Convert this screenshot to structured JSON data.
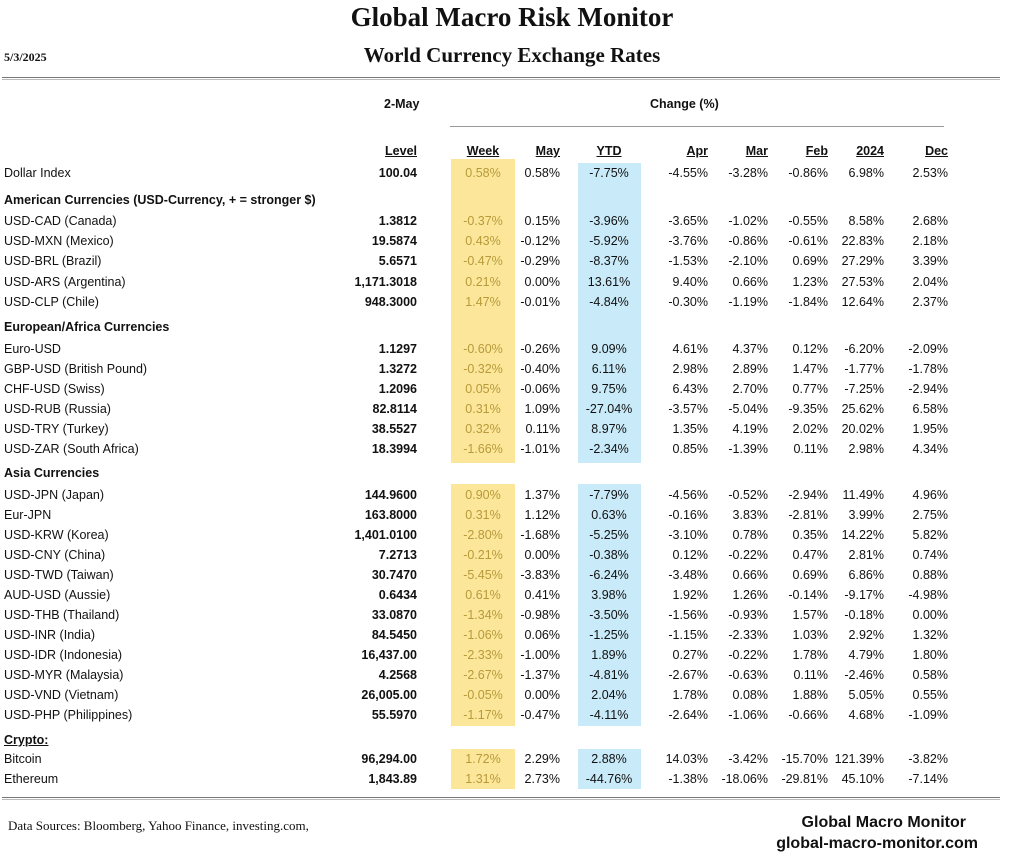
{
  "header": {
    "title": "Global Macro Risk Monitor",
    "subtitle": "World Currency Exchange Rates",
    "date": "5/3/2025",
    "as_of": "2-May",
    "change_label": "Change (%)"
  },
  "columns": [
    "Level",
    "Week",
    "May",
    "YTD",
    "Apr",
    "Mar",
    "Feb",
    "2024",
    "Dec"
  ],
  "highlight_colors": {
    "week": "#fbe69a",
    "ytd": "#c9eaf8"
  },
  "rows": [
    {
      "type": "row",
      "label": "Dollar Index",
      "values": [
        "100.04",
        "0.58%",
        "0.58%",
        "-7.75%",
        "-4.55%",
        "-3.28%",
        "-0.86%",
        "6.98%",
        "2.53%"
      ]
    },
    {
      "type": "section",
      "label": "American Currencies (USD-Currency, + = stronger $)"
    },
    {
      "type": "row",
      "label": "USD-CAD (Canada)",
      "values": [
        "1.3812",
        "-0.37%",
        "0.15%",
        "-3.96%",
        "-3.65%",
        "-1.02%",
        "-0.55%",
        "8.58%",
        "2.68%"
      ]
    },
    {
      "type": "row",
      "label": "USD-MXN  (Mexico)",
      "values": [
        "19.5874",
        "0.43%",
        "-0.12%",
        "-5.92%",
        "-3.76%",
        "-0.86%",
        "-0.61%",
        "22.83%",
        "2.18%"
      ]
    },
    {
      "type": "row",
      "label": "USD-BRL (Brazil)",
      "values": [
        "5.6571",
        "-0.47%",
        "-0.29%",
        "-8.37%",
        "-1.53%",
        "-2.10%",
        "0.69%",
        "27.29%",
        "3.39%"
      ]
    },
    {
      "type": "row",
      "label": "USD-ARS (Argentina)",
      "values": [
        "1,171.3018",
        "0.21%",
        "0.00%",
        "13.61%",
        "9.40%",
        "0.66%",
        "1.23%",
        "27.53%",
        "2.04%"
      ]
    },
    {
      "type": "row",
      "label": "USD-CLP (Chile)",
      "values": [
        "948.3000",
        "1.47%",
        "-0.01%",
        "-4.84%",
        "-0.30%",
        "-1.19%",
        "-1.84%",
        "12.64%",
        "2.37%"
      ]
    },
    {
      "type": "section",
      "label": "European/Africa Currencies"
    },
    {
      "type": "row",
      "label": "Euro-USD",
      "values": [
        "1.1297",
        "-0.60%",
        "-0.26%",
        "9.09%",
        "4.61%",
        "4.37%",
        "0.12%",
        "-6.20%",
        "-2.09%"
      ]
    },
    {
      "type": "row",
      "label": "GBP-USD (British Pound)",
      "values": [
        "1.3272",
        "-0.32%",
        "-0.40%",
        "6.11%",
        "2.98%",
        "2.89%",
        "1.47%",
        "-1.77%",
        "-1.78%"
      ]
    },
    {
      "type": "row",
      "label": "CHF-USD (Swiss)",
      "values": [
        "1.2096",
        "0.05%",
        "-0.06%",
        "9.75%",
        "6.43%",
        "2.70%",
        "0.77%",
        "-7.25%",
        "-2.94%"
      ]
    },
    {
      "type": "row",
      "label": "USD-RUB (Russia)",
      "values": [
        "82.8114",
        "0.31%",
        "1.09%",
        "-27.04%",
        "-3.57%",
        "-5.04%",
        "-9.35%",
        "25.62%",
        "6.58%"
      ]
    },
    {
      "type": "row",
      "label": "USD-TRY (Turkey)",
      "values": [
        "38.5527",
        "0.32%",
        "0.11%",
        "8.97%",
        "1.35%",
        "4.19%",
        "2.02%",
        "20.02%",
        "1.95%"
      ]
    },
    {
      "type": "row",
      "label": "USD-ZAR (South Africa)",
      "values": [
        "18.3994",
        "-1.66%",
        "-1.01%",
        "-2.34%",
        "0.85%",
        "-1.39%",
        "0.11%",
        "2.98%",
        "4.34%"
      ]
    },
    {
      "type": "section",
      "label": "Asia Currencies"
    },
    {
      "type": "row",
      "label": "USD-JPN (Japan)",
      "values": [
        "144.9600",
        "0.90%",
        "1.37%",
        "-7.79%",
        "-4.56%",
        "-0.52%",
        "-2.94%",
        "11.49%",
        "4.96%"
      ]
    },
    {
      "type": "row",
      "label": "Eur-JPN",
      "values": [
        "163.8000",
        "0.31%",
        "1.12%",
        "0.63%",
        "-0.16%",
        "3.83%",
        "-2.81%",
        "3.99%",
        "2.75%"
      ]
    },
    {
      "type": "row",
      "label": "USD-KRW (Korea)",
      "values": [
        "1,401.0100",
        "-2.80%",
        "-1.68%",
        "-5.25%",
        "-3.10%",
        "0.78%",
        "0.35%",
        "14.22%",
        "5.82%"
      ]
    },
    {
      "type": "row",
      "label": "USD-CNY (China)",
      "values": [
        "7.2713",
        "-0.21%",
        "0.00%",
        "-0.38%",
        "0.12%",
        "-0.22%",
        "0.47%",
        "2.81%",
        "0.74%"
      ]
    },
    {
      "type": "row",
      "label": "USD-TWD (Taiwan)",
      "values": [
        "30.7470",
        "-5.45%",
        "-3.83%",
        "-6.24%",
        "-3.48%",
        "0.66%",
        "0.69%",
        "6.86%",
        "0.88%"
      ]
    },
    {
      "type": "row",
      "label": "AUD-USD (Aussie)",
      "values": [
        "0.6434",
        "0.61%",
        "0.41%",
        "3.98%",
        "1.92%",
        "1.26%",
        "-0.14%",
        "-9.17%",
        "-4.98%"
      ]
    },
    {
      "type": "row",
      "label": "USD-THB  (Thailand)",
      "values": [
        "33.0870",
        "-1.34%",
        "-0.98%",
        "-3.50%",
        "-1.56%",
        "-0.93%",
        "1.57%",
        "-0.18%",
        "0.00%"
      ]
    },
    {
      "type": "row",
      "label": "USD-INR (India)",
      "values": [
        "84.5450",
        "-1.06%",
        "0.06%",
        "-1.25%",
        "-1.15%",
        "-2.33%",
        "1.03%",
        "2.92%",
        "1.32%"
      ]
    },
    {
      "type": "row",
      "label": "USD-IDR (Indonesia)",
      "values": [
        "16,437.00",
        "-2.33%",
        "-1.00%",
        "1.89%",
        "0.27%",
        "-0.22%",
        "1.78%",
        "4.79%",
        "1.80%"
      ]
    },
    {
      "type": "row",
      "label": "USD-MYR (Malaysia)",
      "values": [
        "4.2568",
        "-2.67%",
        "-1.37%",
        "-4.81%",
        "-2.67%",
        "-0.63%",
        "0.11%",
        "-2.46%",
        "0.58%"
      ]
    },
    {
      "type": "row",
      "label": "USD-VND (Vietnam)",
      "values": [
        "26,005.00",
        "-0.05%",
        "0.00%",
        "2.04%",
        "1.78%",
        "0.08%",
        "1.88%",
        "5.05%",
        "0.55%"
      ]
    },
    {
      "type": "row",
      "label": "USD-PHP (Philippines)",
      "values": [
        "55.5970",
        "-1.17%",
        "-0.47%",
        "-4.11%",
        "-2.64%",
        "-1.06%",
        "-0.66%",
        "4.68%",
        "-1.09%"
      ]
    },
    {
      "type": "section",
      "label": "Crypto:",
      "underline": true
    },
    {
      "type": "row",
      "label": "Bitcoin",
      "values": [
        "96,294.00",
        "1.72%",
        "2.29%",
        "2.88%",
        "14.03%",
        "-3.42%",
        "-15.70%",
        "121.39%",
        "-3.82%"
      ]
    },
    {
      "type": "row",
      "label": "Ethereum",
      "values": [
        "1,843.89",
        "1.31%",
        "2.73%",
        "-44.76%",
        "-1.38%",
        "-18.06%",
        "-29.81%",
        "45.10%",
        "-7.14%"
      ]
    }
  ],
  "footer": {
    "sources": "Data Sources:  Bloomberg,  Yahoo Finance, investing.com,",
    "brand": "Global Macro Monitor",
    "site": "global-macro-monitor.com"
  }
}
